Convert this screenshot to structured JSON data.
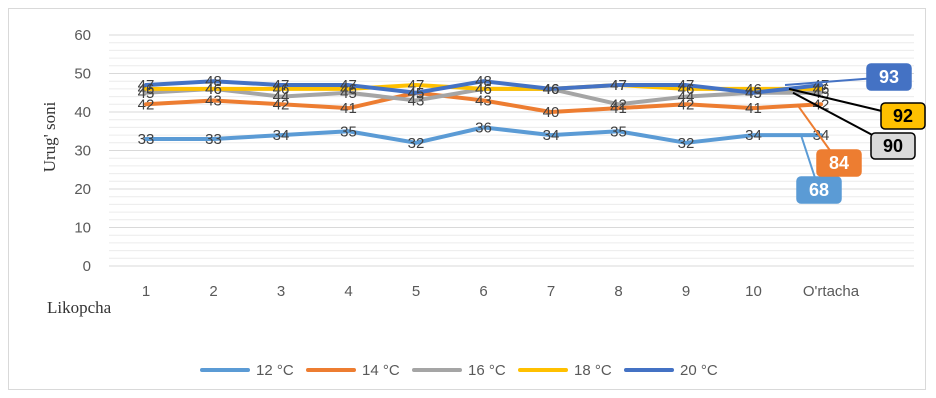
{
  "chart_data": {
    "type": "line",
    "title": "",
    "ylabel": "Urug' soni",
    "xlabel": "Likopcha",
    "ylim": [
      0,
      60
    ],
    "yticks": [
      0,
      10,
      20,
      30,
      40,
      50,
      60
    ],
    "categories": [
      "1",
      "2",
      "3",
      "4",
      "5",
      "6",
      "7",
      "8",
      "9",
      "10",
      "O'rtacha"
    ],
    "grid": true,
    "legend_position": "bottom",
    "series": [
      {
        "name": "12 °C",
        "color": "#5B9BD5",
        "values": [
          33,
          33,
          34,
          35,
          32,
          36,
          34,
          35,
          32,
          34,
          34
        ],
        "callout": "68"
      },
      {
        "name": "14 °C",
        "color": "#ED7D31",
        "values": [
          42,
          43,
          42,
          41,
          45,
          43,
          40,
          41,
          42,
          41,
          42
        ],
        "callout": "84"
      },
      {
        "name": "16 °C",
        "color": "#A5A5A5",
        "values": [
          45,
          46,
          44,
          45,
          43,
          46,
          46,
          42,
          44,
          45,
          45
        ],
        "callout": "90"
      },
      {
        "name": "18 °C",
        "color": "#FFC000",
        "values": [
          46,
          46,
          46,
          46,
          47,
          46,
          46,
          47,
          46,
          46,
          46
        ],
        "callout": "92"
      },
      {
        "name": "20 °C",
        "color": "#4472C4",
        "values": [
          47,
          48,
          47,
          47,
          45,
          48,
          46,
          47,
          47,
          45,
          47
        ],
        "callout": "93"
      }
    ]
  }
}
